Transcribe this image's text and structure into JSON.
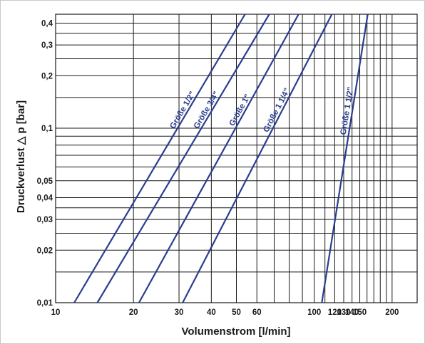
{
  "chart_data": {
    "type": "line",
    "xlabel": "Volumenstrom [l/min]",
    "ylabel": "Druckverlust △ p [bar]",
    "x_scale": "log",
    "y_scale": "log",
    "xlim": [
      10,
      250
    ],
    "ylim": [
      0.01,
      0.45
    ],
    "grid": true,
    "x_ticks": [
      {
        "value": 10,
        "label": "10"
      },
      {
        "value": 20,
        "label": "20"
      },
      {
        "value": 30,
        "label": "30"
      },
      {
        "value": 40,
        "label": "40"
      },
      {
        "value": 50,
        "label": "50"
      },
      {
        "value": 60,
        "label": "60"
      },
      {
        "value": 100,
        "label": "100"
      },
      {
        "value": 120,
        "label": "120"
      },
      {
        "value": 130,
        "label": "130"
      },
      {
        "value": 140,
        "label": "140"
      },
      {
        "value": 150,
        "label": "150"
      },
      {
        "value": 200,
        "label": "200"
      }
    ],
    "y_ticks": [
      {
        "value": 0.01,
        "label": "0,01"
      },
      {
        "value": 0.02,
        "label": "0,02"
      },
      {
        "value": 0.03,
        "label": "0,03"
      },
      {
        "value": 0.04,
        "label": "0,04"
      },
      {
        "value": 0.05,
        "label": "0,05"
      },
      {
        "value": 0.1,
        "label": "0,1"
      },
      {
        "value": 0.2,
        "label": "0,2"
      },
      {
        "value": 0.3,
        "label": "0,3"
      },
      {
        "value": 0.4,
        "label": "0,4"
      }
    ],
    "series": [
      {
        "name": "Größe 1/2\"",
        "x": [
          11.8,
          54
        ],
        "y": [
          0.01,
          0.45
        ]
      },
      {
        "name": "Größe 3/4\"",
        "x": [
          14.5,
          67
        ],
        "y": [
          0.01,
          0.45
        ]
      },
      {
        "name": "Größe 1\"",
        "x": [
          21,
          87
        ],
        "y": [
          0.01,
          0.45
        ]
      },
      {
        "name": "Größe 1 1/4\"",
        "x": [
          31,
          117
        ],
        "y": [
          0.01,
          0.45
        ]
      },
      {
        "name": "Größe 1 1/2\"",
        "x": [
          107,
          161
        ],
        "y": [
          0.01,
          0.45
        ]
      }
    ],
    "line_color": "#2b3d8f"
  }
}
